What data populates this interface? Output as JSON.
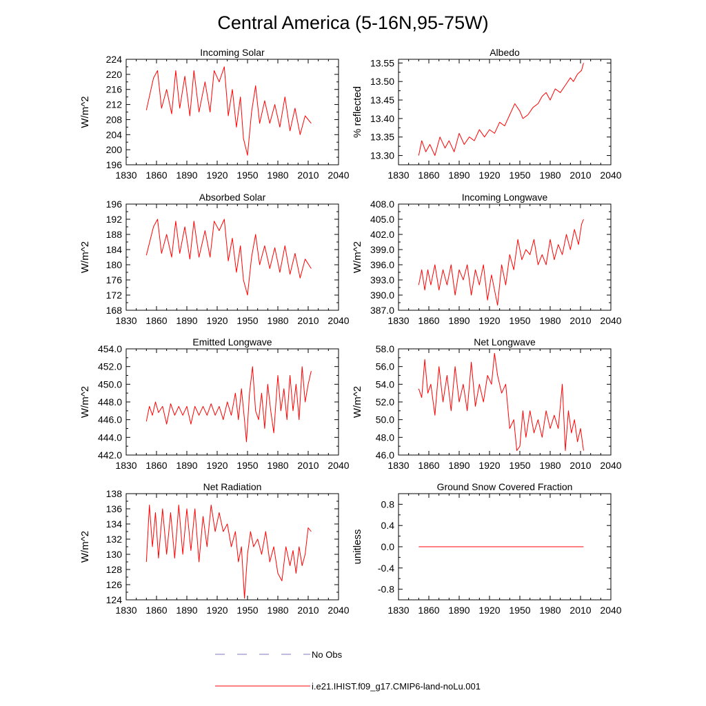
{
  "figure_title": "Central America (5-16N,95-75W)",
  "legend": {
    "obs_label": "No Obs",
    "model_label": "i.e21.IHIST.f09_g17.CMIP6-land-noLu.001",
    "obs_color": "#7777cc",
    "model_color": "#ff0000"
  },
  "colors": {
    "line": "#ff0000",
    "axes": "#000000",
    "background": "#ffffff"
  },
  "chart_data": [
    {
      "type": "line",
      "title": "Incoming Solar",
      "xlabel": "",
      "ylabel": "W/m^2",
      "xlim": [
        1830,
        2040
      ],
      "ylim": [
        196,
        224
      ],
      "xticks": [
        "1830",
        "1860",
        "1890",
        "1920",
        "1950",
        "1980",
        "2010",
        "2040"
      ],
      "yticks": [
        "196",
        "200",
        "204",
        "208",
        "212",
        "216",
        "220",
        "224"
      ],
      "series": [
        {
          "color": "#ff0000",
          "x": [
            1850,
            1857,
            1861,
            1865,
            1870,
            1875,
            1879,
            1883,
            1888,
            1893,
            1897,
            1902,
            1908,
            1913,
            1917,
            1922,
            1927,
            1931,
            1935,
            1939,
            1943,
            1946,
            1950,
            1954,
            1958,
            1962,
            1967,
            1972,
            1977,
            1982,
            1987,
            1992,
            1997,
            2002,
            2007,
            2013
          ],
          "y": [
            210.5,
            219,
            221,
            211,
            216,
            209.5,
            221,
            211,
            219.5,
            209,
            221,
            210,
            218,
            210,
            221,
            218,
            222,
            209,
            216,
            206,
            214,
            203,
            198.5,
            210,
            217,
            207,
            213,
            207,
            212,
            206,
            214,
            205,
            211,
            204,
            209,
            207
          ]
        }
      ]
    },
    {
      "type": "line",
      "title": "Albedo",
      "xlabel": "",
      "ylabel": "% reflected",
      "xlim": [
        1830,
        2040
      ],
      "ylim": [
        13.275,
        13.56
      ],
      "xticks": [
        "1830",
        "1860",
        "1890",
        "1920",
        "1950",
        "1980",
        "2010",
        "2040"
      ],
      "yticks": [
        "13.30",
        "13.35",
        "13.40",
        "13.45",
        "13.50",
        "13.55"
      ],
      "series": [
        {
          "color": "#ff0000",
          "x": [
            1850,
            1853,
            1857,
            1861,
            1866,
            1871,
            1876,
            1880,
            1885,
            1890,
            1895,
            1900,
            1905,
            1910,
            1915,
            1920,
            1925,
            1930,
            1935,
            1940,
            1945,
            1950,
            1953,
            1958,
            1963,
            1968,
            1972,
            1976,
            1980,
            1985,
            1990,
            1995,
            2000,
            2003,
            2007,
            2011,
            2013
          ],
          "y": [
            13.3,
            13.34,
            13.31,
            13.33,
            13.3,
            13.35,
            13.32,
            13.34,
            13.31,
            13.36,
            13.33,
            13.35,
            13.34,
            13.37,
            13.35,
            13.37,
            13.36,
            13.39,
            13.38,
            13.41,
            13.44,
            13.42,
            13.4,
            13.41,
            13.43,
            13.44,
            13.46,
            13.47,
            13.45,
            13.48,
            13.47,
            13.49,
            13.51,
            13.5,
            13.52,
            13.53,
            13.55
          ]
        }
      ]
    },
    {
      "type": "line",
      "title": "Absorbed Solar",
      "xlabel": "",
      "ylabel": "W/m^2",
      "xlim": [
        1830,
        2040
      ],
      "ylim": [
        168,
        196
      ],
      "xticks": [
        "1830",
        "1860",
        "1890",
        "1920",
        "1950",
        "1980",
        "2010",
        "2040"
      ],
      "yticks": [
        "168",
        "172",
        "176",
        "180",
        "184",
        "188",
        "192",
        "196"
      ],
      "series": [
        {
          "color": "#ff0000",
          "x": [
            1850,
            1857,
            1861,
            1865,
            1870,
            1875,
            1879,
            1883,
            1888,
            1893,
            1897,
            1902,
            1908,
            1913,
            1917,
            1922,
            1927,
            1931,
            1935,
            1939,
            1943,
            1946,
            1950,
            1954,
            1958,
            1962,
            1967,
            1972,
            1977,
            1982,
            1987,
            1992,
            1997,
            2002,
            2007,
            2013
          ],
          "y": [
            182.5,
            190,
            192,
            183,
            188,
            182,
            191.5,
            183,
            190,
            181.5,
            191.5,
            182,
            189,
            182,
            191.5,
            189,
            192,
            181,
            187,
            178,
            185,
            176,
            172,
            182,
            188,
            180,
            185,
            179,
            184.5,
            178,
            185,
            177.5,
            183,
            176.5,
            181.5,
            179
          ]
        }
      ]
    },
    {
      "type": "line",
      "title": "Incoming Longwave",
      "xlabel": "",
      "ylabel": "W/m^2",
      "xlim": [
        1830,
        2040
      ],
      "ylim": [
        387,
        408
      ],
      "xticks": [
        "1830",
        "1860",
        "1890",
        "1920",
        "1950",
        "1980",
        "2010",
        "2040"
      ],
      "yticks": [
        "387.0",
        "390.0",
        "393.0",
        "396.0",
        "399.0",
        "402.0",
        "405.0",
        "408.0"
      ],
      "series": [
        {
          "color": "#ff0000",
          "x": [
            1850,
            1853,
            1856,
            1859,
            1862,
            1866,
            1870,
            1874,
            1878,
            1882,
            1886,
            1890,
            1894,
            1898,
            1902,
            1906,
            1910,
            1914,
            1918,
            1922,
            1925,
            1928,
            1932,
            1936,
            1940,
            1944,
            1948,
            1952,
            1956,
            1960,
            1964,
            1968,
            1972,
            1976,
            1980,
            1984,
            1988,
            1992,
            1996,
            2000,
            2004,
            2008,
            2011,
            2013
          ],
          "y": [
            392,
            395,
            391,
            395,
            392,
            396,
            391,
            395,
            392,
            396,
            390,
            395,
            393,
            396,
            390,
            395,
            392,
            396,
            389,
            394,
            391,
            388,
            396,
            392,
            398,
            395,
            401,
            397,
            399,
            398,
            401,
            396,
            398,
            396,
            401,
            397,
            400,
            398,
            402,
            399,
            403,
            400,
            404,
            405
          ]
        }
      ]
    },
    {
      "type": "line",
      "title": "Emitted Longwave",
      "xlabel": "",
      "ylabel": "W/m^2",
      "xlim": [
        1830,
        2040
      ],
      "ylim": [
        442,
        454
      ],
      "xticks": [
        "1830",
        "1860",
        "1890",
        "1920",
        "1950",
        "1980",
        "2010",
        "2040"
      ],
      "yticks": [
        "442.0",
        "444.0",
        "446.0",
        "448.0",
        "450.0",
        "452.0",
        "454.0"
      ],
      "series": [
        {
          "color": "#ff0000",
          "x": [
            1850,
            1853,
            1856,
            1859,
            1862,
            1866,
            1870,
            1874,
            1878,
            1882,
            1886,
            1890,
            1894,
            1898,
            1902,
            1906,
            1910,
            1914,
            1918,
            1922,
            1926,
            1930,
            1934,
            1938,
            1941,
            1944,
            1947,
            1949,
            1952,
            1955,
            1958,
            1961,
            1964,
            1967,
            1970,
            1973,
            1976,
            1980,
            1983,
            1986,
            1989,
            1992,
            1995,
            1998,
            2001,
            2004,
            2007,
            2010,
            2013
          ],
          "y": [
            445.8,
            447.5,
            446.5,
            448,
            446.8,
            447.5,
            445.5,
            447.8,
            446.5,
            447.5,
            446.5,
            447.5,
            445.5,
            447.5,
            446.5,
            447.5,
            446.5,
            447.8,
            446.5,
            447.5,
            446,
            448,
            446.5,
            449,
            446,
            449.5,
            446,
            443.5,
            449,
            452,
            447,
            446,
            449,
            445,
            450,
            447,
            444.5,
            451,
            447,
            449.5,
            446,
            451,
            447,
            450,
            446,
            452,
            448,
            450,
            451.5
          ]
        }
      ]
    },
    {
      "type": "line",
      "title": "Net Longwave",
      "xlabel": "",
      "ylabel": "W/m^2",
      "xlim": [
        1830,
        2040
      ],
      "ylim": [
        46,
        58
      ],
      "xticks": [
        "1830",
        "1860",
        "1890",
        "1920",
        "1950",
        "1980",
        "2010",
        "2040"
      ],
      "yticks": [
        "46.0",
        "48.0",
        "50.0",
        "52.0",
        "54.0",
        "56.0",
        "58.0"
      ],
      "series": [
        {
          "color": "#ff0000",
          "x": [
            1850,
            1853,
            1856,
            1859,
            1862,
            1866,
            1870,
            1874,
            1878,
            1882,
            1886,
            1890,
            1894,
            1898,
            1902,
            1906,
            1910,
            1914,
            1918,
            1922,
            1925,
            1928,
            1932,
            1936,
            1940,
            1944,
            1947,
            1950,
            1953,
            1956,
            1960,
            1964,
            1968,
            1972,
            1976,
            1980,
            1984,
            1988,
            1992,
            1995,
            1998,
            2001,
            2004,
            2007,
            2010,
            2013
          ],
          "y": [
            53.5,
            52.5,
            56.8,
            53,
            54,
            50.5,
            56,
            52,
            55,
            51,
            56,
            52,
            54,
            51,
            56.5,
            51.5,
            54,
            52,
            55,
            54,
            57.5,
            55,
            53,
            54,
            49,
            50,
            46.5,
            47,
            51,
            48,
            51,
            48.5,
            50,
            48,
            51,
            49,
            50.5,
            49,
            54,
            46.5,
            51,
            48.5,
            50,
            47.5,
            49,
            46.5
          ]
        }
      ]
    },
    {
      "type": "line",
      "title": "Net Radiation",
      "xlabel": "",
      "ylabel": "W/m^2",
      "xlim": [
        1830,
        2040
      ],
      "ylim": [
        124,
        138
      ],
      "xticks": [
        "1830",
        "1860",
        "1890",
        "1920",
        "1950",
        "1980",
        "2010",
        "2040"
      ],
      "yticks": [
        "124",
        "126",
        "128",
        "130",
        "132",
        "134",
        "136",
        "138"
      ],
      "series": [
        {
          "color": "#ff0000",
          "x": [
            1850,
            1853,
            1856,
            1859,
            1862,
            1866,
            1870,
            1874,
            1878,
            1882,
            1886,
            1890,
            1894,
            1898,
            1902,
            1906,
            1910,
            1914,
            1918,
            1922,
            1926,
            1930,
            1934,
            1938,
            1941,
            1944,
            1947,
            1950,
            1953,
            1956,
            1960,
            1964,
            1968,
            1972,
            1976,
            1980,
            1984,
            1988,
            1992,
            1995,
            1998,
            2001,
            2004,
            2007,
            2010,
            2013
          ],
          "y": [
            129,
            136.5,
            131,
            135.5,
            129.5,
            136,
            130,
            135.5,
            129.5,
            136.5,
            130,
            136,
            130.5,
            136,
            129,
            135,
            131,
            136.5,
            133,
            135.5,
            133,
            134,
            131,
            133,
            129,
            131,
            124.2,
            130,
            133,
            131,
            132,
            130,
            133,
            129,
            131,
            127.5,
            126.5,
            131,
            128.5,
            130.5,
            127.5,
            131,
            128.5,
            130,
            133.5,
            133
          ]
        }
      ]
    },
    {
      "type": "line",
      "title": "Ground Snow Covered Fraction",
      "xlabel": "",
      "ylabel": "unitless",
      "xlim": [
        1830,
        2040
      ],
      "ylim": [
        -1.0,
        1.0
      ],
      "xticks": [
        "1830",
        "1860",
        "1890",
        "1920",
        "1950",
        "1980",
        "2010",
        "2040"
      ],
      "yticks": [
        "-0.8",
        "-0.4",
        "0.0",
        "0.4",
        "0.8"
      ],
      "series": [
        {
          "color": "#ff0000",
          "x": [
            1850,
            2013
          ],
          "y": [
            0,
            0
          ]
        }
      ]
    }
  ]
}
